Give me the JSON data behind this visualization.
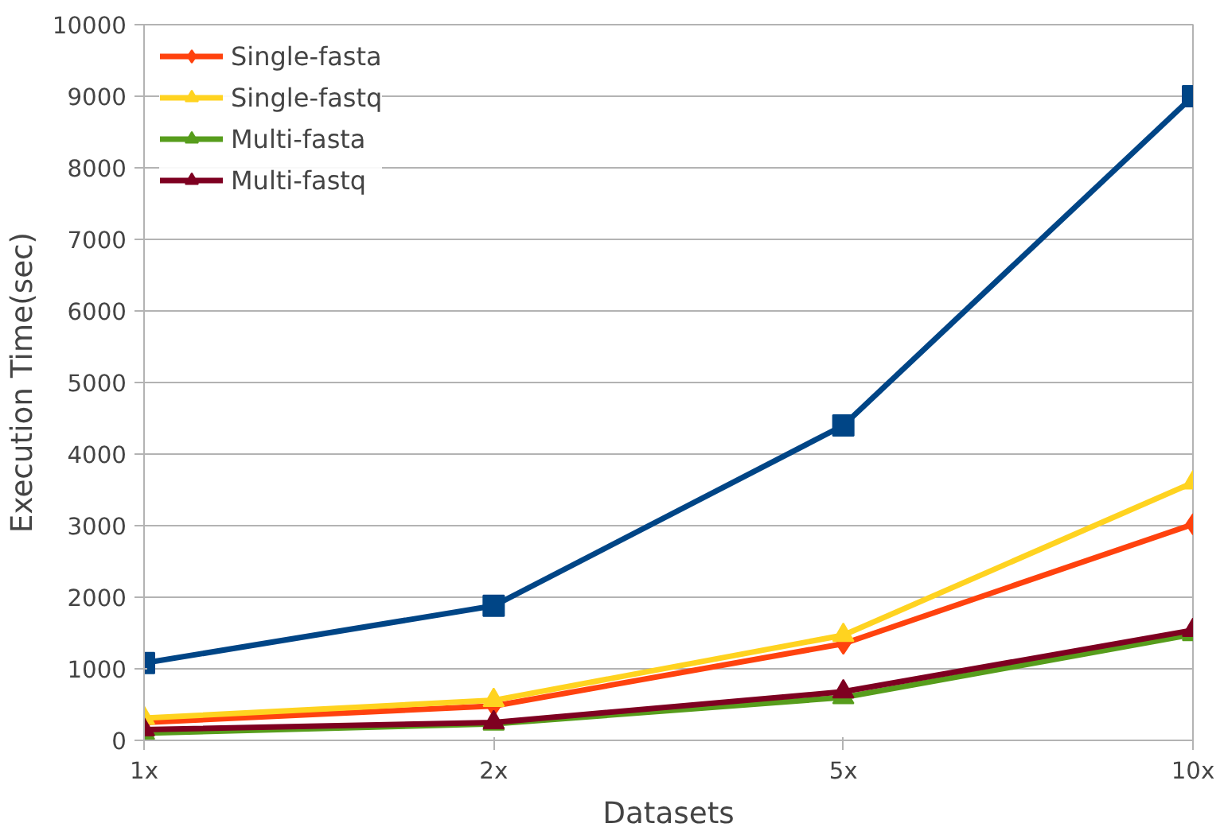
{
  "chart_data": {
    "type": "line",
    "xlabel": "Datasets",
    "ylabel": "Execution Time(sec)",
    "categories": [
      "1x",
      "2x",
      "5x",
      "10x"
    ],
    "series": [
      {
        "color": "#004586",
        "marker": "square",
        "values": [
          1080,
          1880,
          4400,
          9000
        ]
      },
      {
        "name": "Single-fasta",
        "color": "#ff420e",
        "marker": "diamond",
        "values": [
          250,
          480,
          1350,
          3020
        ]
      },
      {
        "name": "Single-fastq",
        "color": "#ffd320",
        "marker": "triangle",
        "values": [
          310,
          560,
          1470,
          3600
        ]
      },
      {
        "name": "Multi-fasta",
        "color": "#579d1c",
        "marker": "triangle",
        "values": [
          100,
          230,
          600,
          1480
        ]
      },
      {
        "name": "Multi-fastq",
        "color": "#7e0021",
        "marker": "triangle",
        "values": [
          150,
          250,
          680,
          1540
        ]
      }
    ],
    "ylim": [
      0,
      10000
    ],
    "yticks": [
      0,
      1000,
      2000,
      3000,
      4000,
      5000,
      6000,
      7000,
      8000,
      9000,
      10000
    ],
    "grid": "y",
    "legend": "top left"
  }
}
